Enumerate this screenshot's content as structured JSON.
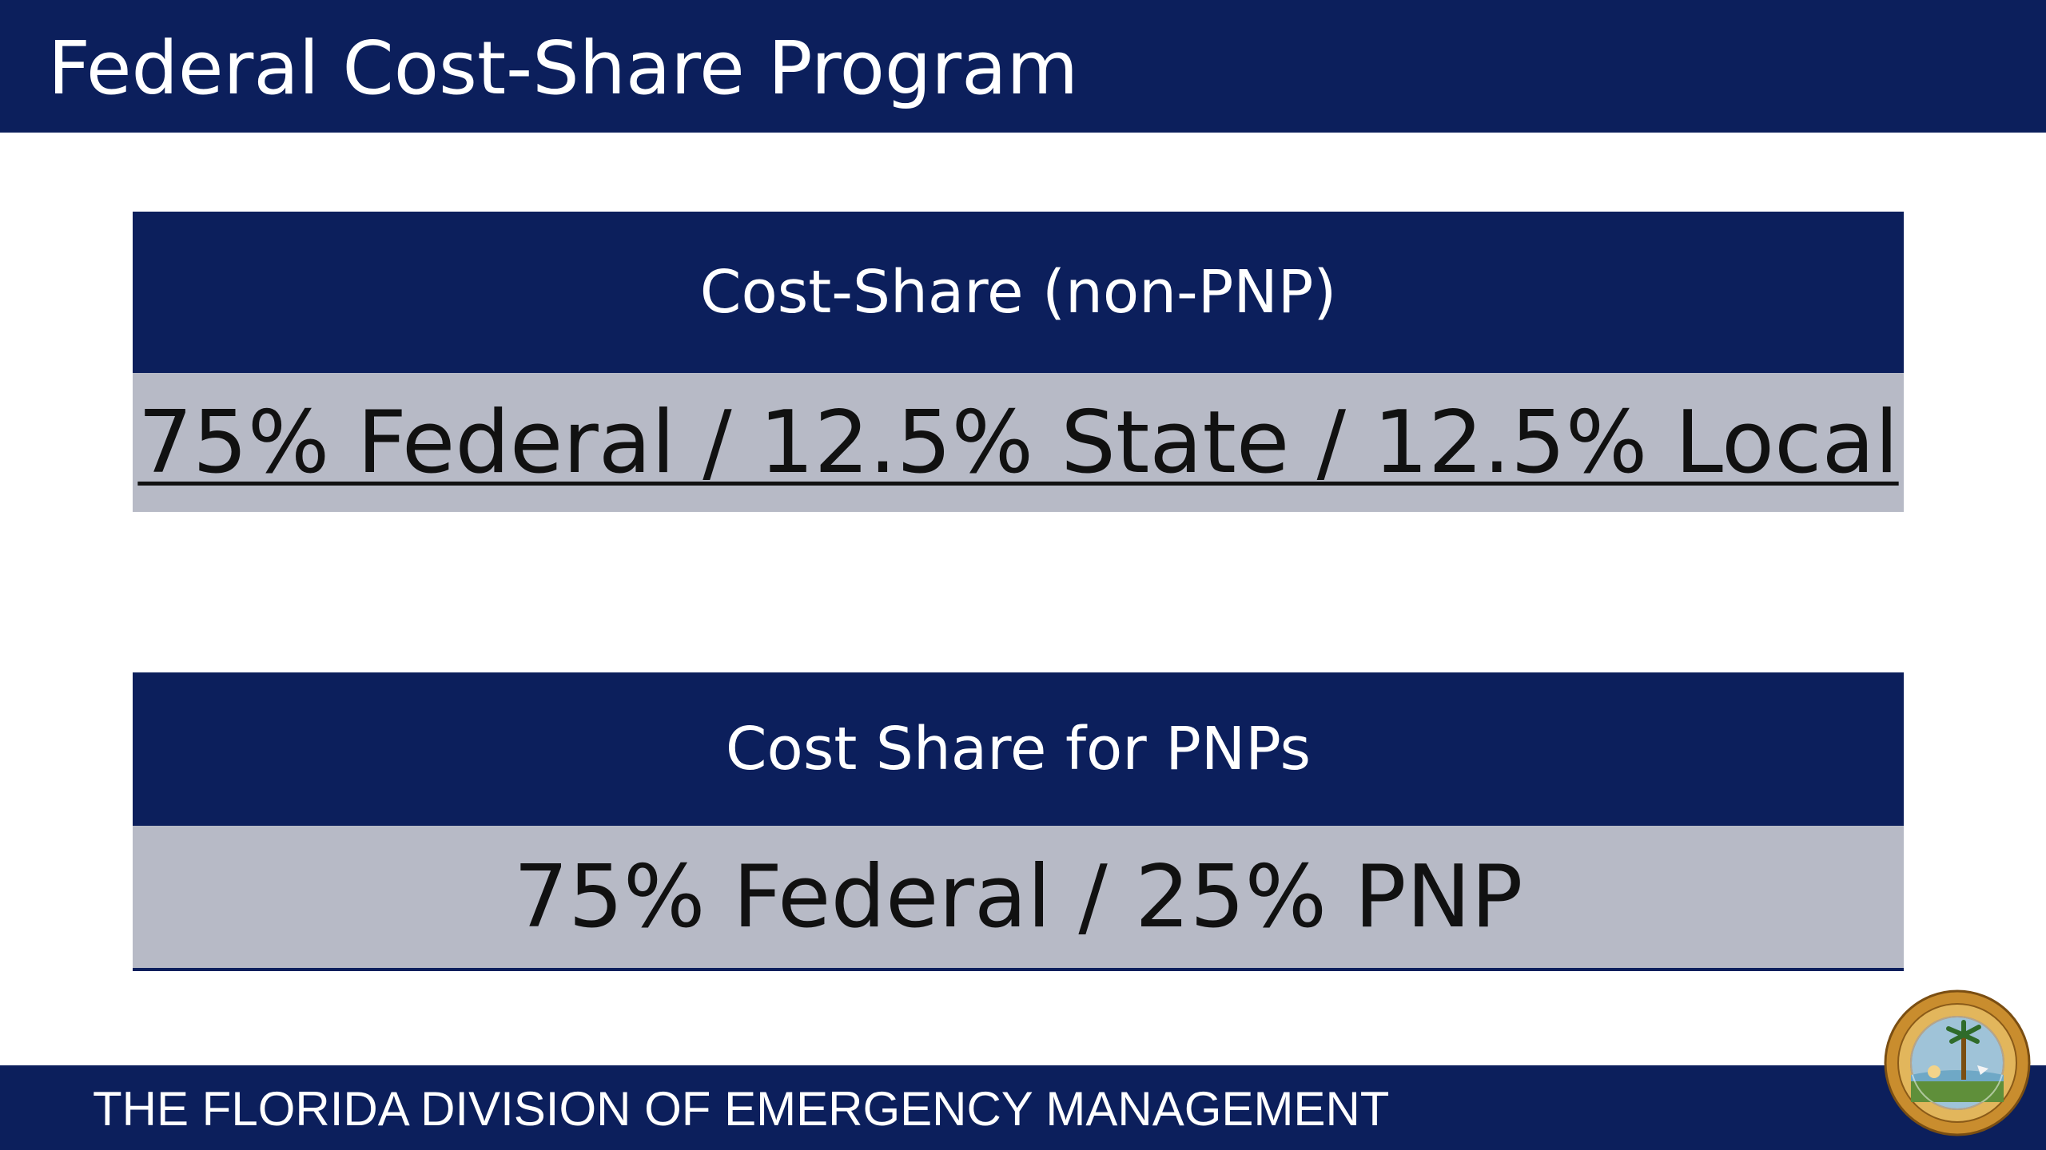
{
  "title": "Federal Cost-Share Program",
  "panels": [
    {
      "heading": "Cost-Share (non-PNP)",
      "value": "75% Federal / 12.5% State / 12.5% Local"
    },
    {
      "heading": "Cost Share for PNPs",
      "value": "75% Federal / 25% PNP"
    }
  ],
  "footer": {
    "text": "THE FLORIDA DIVISION OF EMERGENCY MANAGEMENT",
    "seal_icon": "florida-state-seal-icon"
  },
  "colors": {
    "navy": "#0c1f5c",
    "gray": "#b7bac6",
    "seal_gold": "#d19a3a"
  }
}
